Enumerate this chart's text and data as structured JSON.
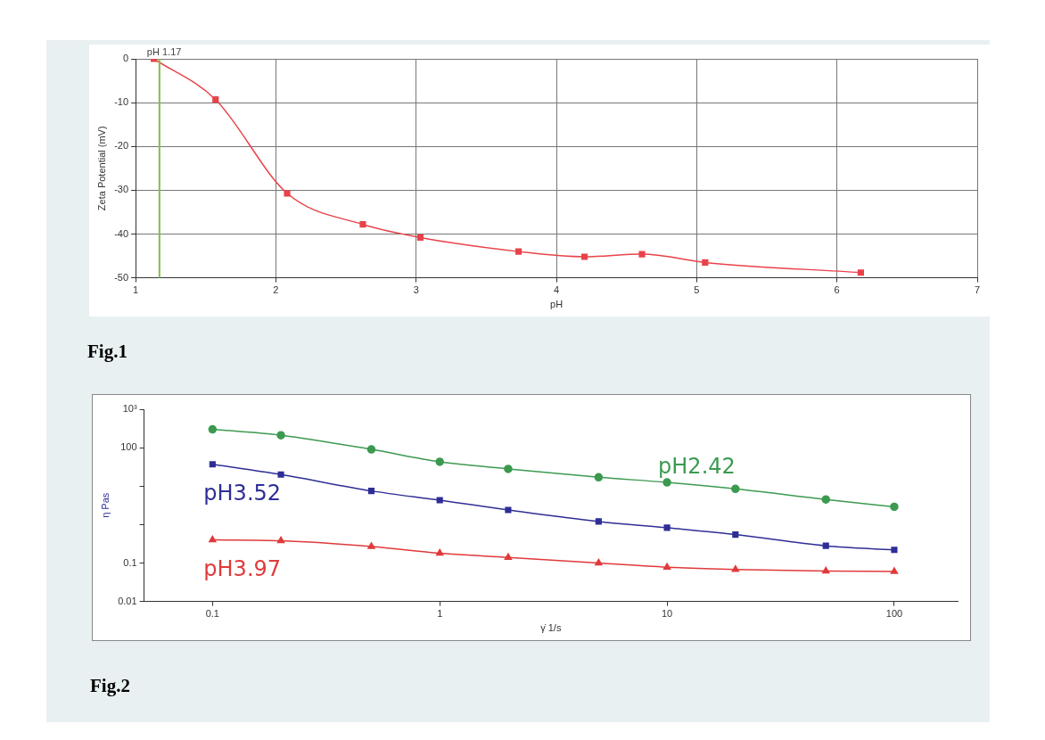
{
  "chart_data": [
    {
      "type": "line",
      "xlabel": "pH",
      "ylabel": "Zeta Potential (mV)",
      "xlim": [
        1,
        7
      ],
      "xticks": [
        1,
        2,
        3,
        4,
        5,
        6,
        7
      ],
      "ylim": [
        -50,
        0
      ],
      "yticks": [
        -50,
        -40,
        -30,
        -20,
        -10,
        0
      ],
      "grid": true,
      "legend": false,
      "marker": "square",
      "line_style": "solid",
      "series": [
        {
          "color": "#e8434a",
          "x": [
            1.13,
            1.57,
            2.08,
            2.62,
            3.03,
            3.73,
            4.2,
            4.61,
            5.06,
            6.17
          ],
          "values": [
            0,
            -9.3,
            -30.7,
            -37.8,
            -40.8,
            -44,
            -45.2,
            -44.6,
            -46.5,
            -48.8
          ]
        }
      ],
      "ref_lines": [
        {
          "axis": "x",
          "value": 1.17,
          "label": "pH 1.17",
          "color": "#7cc04a"
        }
      ],
      "annotations": [
        "Fig.1"
      ]
    },
    {
      "type": "line",
      "xlabel": "γ̇ 1/s",
      "ylabel": "η Pas",
      "log": "xy",
      "xlim": [
        0.05,
        190
      ],
      "xticks": [
        0.1,
        1,
        10,
        100
      ],
      "ylim": [
        0.01,
        1000
      ],
      "yticks": [
        0.01,
        0.1,
        {
          "value": 1,
          "label": null
        },
        {
          "value": 10,
          "label": null
        },
        100,
        {
          "value": 1000,
          "label": "10³"
        }
      ],
      "grid": false,
      "legend": false,
      "line_style": "solid",
      "x": [
        0.1,
        0.2,
        0.5,
        1,
        2,
        5,
        10,
        20,
        50,
        100
      ],
      "series": [
        {
          "name": "pH2.42",
          "color": "#3c9a50",
          "marker": "circle",
          "values": [
            300,
            210,
            90,
            43,
            28,
            17,
            12.5,
            8.5,
            4.5,
            2.9
          ]
        },
        {
          "name": "pH3.52",
          "color": "#2e2e96",
          "marker": "square",
          "values": [
            37,
            20,
            7.5,
            4.3,
            2.4,
            1.2,
            0.83,
            0.55,
            0.28,
            0.22
          ]
        },
        {
          "name": "pH3.97",
          "color": "#e03a3a",
          "marker": "triangle",
          "values": [
            0.4,
            0.38,
            0.27,
            0.18,
            0.14,
            0.1,
            0.078,
            0.068,
            0.062,
            0.06
          ]
        }
      ],
      "annotations": [
        "Fig.2"
      ]
    }
  ]
}
